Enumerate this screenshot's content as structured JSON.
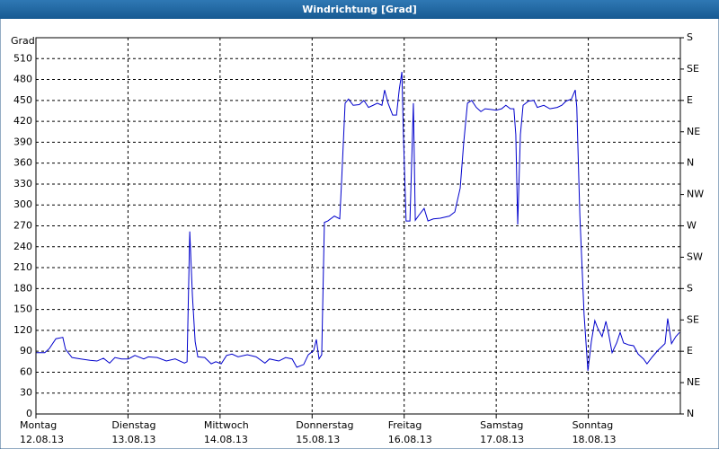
{
  "chart_data": {
    "type": "line",
    "title": "Windrichtung [Grad]",
    "y_label": "Grad",
    "color": "#0000cc",
    "grid": true,
    "xlim": [
      0,
      168
    ],
    "xticks": [
      {
        "value": 0,
        "label": "Montag",
        "date": "12.08.13"
      },
      {
        "value": 24,
        "label": "Dienstag",
        "date": "13.08.13"
      },
      {
        "value": 48,
        "label": "Mittwoch",
        "date": "14.08.13"
      },
      {
        "value": 72,
        "label": "Donnerstag",
        "date": "15.08.13"
      },
      {
        "value": 96,
        "label": "Freitag",
        "date": "16.08.13"
      },
      {
        "value": 120,
        "label": "Samstag",
        "date": "17.08.13"
      },
      {
        "value": 144,
        "label": "Sonntag",
        "date": "18.08.13"
      }
    ],
    "ylim": [
      0,
      540
    ],
    "yticks": [
      0,
      30,
      60,
      90,
      120,
      150,
      180,
      210,
      240,
      270,
      300,
      330,
      360,
      390,
      420,
      450,
      480,
      510
    ],
    "y2lim": [
      0,
      540
    ],
    "y2ticks": [
      {
        "value": 0,
        "label": "N"
      },
      {
        "value": 45,
        "label": "NE"
      },
      {
        "value": 90,
        "label": "E"
      },
      {
        "value": 135,
        "label": "SE"
      },
      {
        "value": 180,
        "label": "S"
      },
      {
        "value": 225,
        "label": "SW"
      },
      {
        "value": 270,
        "label": "W"
      },
      {
        "value": 315,
        "label": "NW"
      },
      {
        "value": 360,
        "label": "N"
      },
      {
        "value": 405,
        "label": "NE"
      },
      {
        "value": 450,
        "label": "E"
      },
      {
        "value": 495,
        "label": "SE"
      },
      {
        "value": 540,
        "label": "S"
      }
    ],
    "x": [
      0,
      2.3,
      3.5,
      5.2,
      7.0,
      7.7,
      9.4,
      11.7,
      14.1,
      15.9,
      17.6,
      19.2,
      20.6,
      22.3,
      24.1,
      25.8,
      28.1,
      29.3,
      31.6,
      34.0,
      36.3,
      38.7,
      39.4,
      40.1,
      40.8,
      41.5,
      42.2,
      44.0,
      45.7,
      46.9,
      48.3,
      49.7,
      51.1,
      52.7,
      55.1,
      57.4,
      59.7,
      60.9,
      63.3,
      65.1,
      66.8,
      68.0,
      69.8,
      71.0,
      72.4,
      73.1,
      73.8,
      74.5,
      75.2,
      76.1,
      77.8,
      79.2,
      79.7,
      80.6,
      81.5,
      82.7,
      84.3,
      85.5,
      86.7,
      87.9,
      89.0,
      90.2,
      90.9,
      91.8,
      93.0,
      94.0,
      94.7,
      95.4,
      95.8,
      96.5,
      97.5,
      98.4,
      98.9,
      99.8,
      101.2,
      102.2,
      103.6,
      105.4,
      107.8,
      109.2,
      110.6,
      111.5,
      112.5,
      113.6,
      114.8,
      116.0,
      117.1,
      118.6,
      120.0,
      121.4,
      122.5,
      123.7,
      124.6,
      125.1,
      125.6,
      126.3,
      127.0,
      128.4,
      129.8,
      130.7,
      132.4,
      134.0,
      135.9,
      137.1,
      138.2,
      139.6,
      140.6,
      141.0,
      141.8,
      142.9,
      143.9,
      144.8,
      145.7,
      146.4,
      147.6,
      148.6,
      149.3,
      150.2,
      151.4,
      152.3,
      153.2,
      154.6,
      155.8,
      157.0,
      158.4,
      159.3,
      160.7,
      162.1,
      164.0,
      164.7,
      165.7,
      166.8,
      167.8
    ],
    "values": [
      88,
      88,
      94,
      108,
      110,
      93,
      81,
      79,
      77,
      76,
      80,
      73,
      81,
      79,
      79,
      84,
      79,
      82,
      81,
      76,
      79,
      73,
      75,
      262,
      169,
      104,
      82,
      81,
      72,
      75,
      72,
      84,
      86,
      82,
      85,
      82,
      73,
      79,
      76,
      81,
      79,
      67,
      71,
      85,
      91,
      107,
      79,
      85,
      275,
      277,
      284,
      280,
      336,
      446,
      452,
      443,
      444,
      450,
      440,
      443,
      446,
      443,
      465,
      446,
      429,
      429,
      465,
      491,
      401,
      277,
      277,
      446,
      278,
      285,
      295,
      277,
      280,
      281,
      284,
      290,
      324,
      388,
      446,
      450,
      440,
      434,
      438,
      437,
      436,
      438,
      443,
      438,
      438,
      401,
      272,
      401,
      443,
      449,
      450,
      440,
      443,
      438,
      440,
      443,
      449,
      452,
      465,
      440,
      285,
      143,
      62,
      104,
      134,
      124,
      111,
      133,
      115,
      88,
      102,
      117,
      102,
      99,
      98,
      86,
      79,
      72,
      82,
      91,
      101,
      137,
      101,
      111,
      117
    ]
  }
}
